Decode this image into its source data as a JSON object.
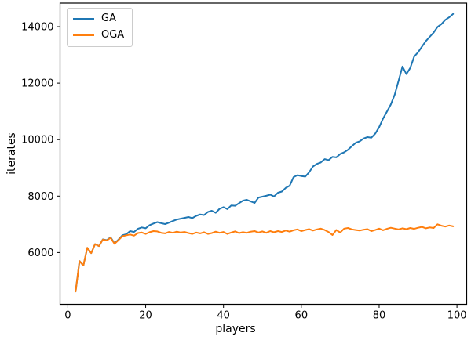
{
  "figure": {
    "xlabel": "players",
    "ylabel": "iterates",
    "background_color": "#ffffff",
    "spine_color": "#000000",
    "legend": {
      "position": "upper left",
      "entries": [
        {
          "label": "GA",
          "color": "#1f77b4"
        },
        {
          "label": "OGA",
          "color": "#ff7f0e"
        }
      ]
    }
  },
  "chart_data": {
    "type": "line",
    "title": "",
    "xlabel": "players",
    "ylabel": "iterates",
    "grid": false,
    "legend_position": "upper left",
    "xlim": [
      -2,
      102.5
    ],
    "ylim": [
      4166,
      14833
    ],
    "x_ticks": [
      0,
      20,
      40,
      60,
      80,
      100
    ],
    "y_ticks": [
      6000,
      8000,
      10000,
      12000,
      14000
    ],
    "x": [
      2,
      3,
      4,
      5,
      6,
      7,
      8,
      9,
      10,
      11,
      12,
      13,
      14,
      15,
      16,
      17,
      18,
      19,
      20,
      21,
      22,
      23,
      24,
      25,
      26,
      27,
      28,
      29,
      30,
      31,
      32,
      33,
      34,
      35,
      36,
      37,
      38,
      39,
      40,
      41,
      42,
      43,
      44,
      45,
      46,
      47,
      48,
      49,
      50,
      51,
      52,
      53,
      54,
      55,
      56,
      57,
      58,
      59,
      60,
      61,
      62,
      63,
      64,
      65,
      66,
      67,
      68,
      69,
      70,
      71,
      72,
      73,
      74,
      75,
      76,
      77,
      78,
      79,
      80,
      81,
      82,
      83,
      84,
      85,
      86,
      87,
      88,
      89,
      90,
      91,
      92,
      93,
      94,
      95,
      96,
      97,
      98,
      99
    ],
    "series": [
      {
        "name": "GA",
        "color": "#1f77b4",
        "values": [
          4620,
          5700,
          5540,
          6170,
          5980,
          6300,
          6230,
          6470,
          6440,
          6540,
          6330,
          6460,
          6610,
          6650,
          6760,
          6730,
          6840,
          6890,
          6860,
          6970,
          7030,
          7080,
          7040,
          7010,
          7060,
          7120,
          7170,
          7200,
          7230,
          7260,
          7220,
          7300,
          7350,
          7330,
          7440,
          7480,
          7410,
          7550,
          7610,
          7540,
          7670,
          7660,
          7750,
          7840,
          7870,
          7810,
          7760,
          7950,
          7980,
          8010,
          8050,
          7990,
          8120,
          8160,
          8290,
          8370,
          8670,
          8740,
          8710,
          8690,
          8840,
          9050,
          9140,
          9190,
          9310,
          9270,
          9390,
          9370,
          9490,
          9550,
          9640,
          9770,
          9890,
          9940,
          10040,
          10090,
          10070,
          10210,
          10440,
          10740,
          10990,
          11240,
          11590,
          12090,
          12590,
          12320,
          12540,
          12940,
          13090,
          13290,
          13490,
          13640,
          13790,
          13990,
          14090,
          14240,
          14330,
          14450
        ]
      },
      {
        "name": "OGA",
        "color": "#ff7f0e",
        "values": [
          4620,
          5700,
          5540,
          6170,
          5980,
          6300,
          6230,
          6460,
          6430,
          6520,
          6310,
          6440,
          6580,
          6610,
          6640,
          6600,
          6690,
          6710,
          6660,
          6720,
          6760,
          6750,
          6700,
          6680,
          6730,
          6700,
          6740,
          6710,
          6730,
          6690,
          6660,
          6710,
          6680,
          6720,
          6660,
          6690,
          6740,
          6700,
          6730,
          6660,
          6710,
          6750,
          6690,
          6720,
          6700,
          6740,
          6760,
          6710,
          6750,
          6700,
          6760,
          6720,
          6760,
          6730,
          6780,
          6740,
          6790,
          6820,
          6760,
          6800,
          6830,
          6780,
          6820,
          6850,
          6800,
          6730,
          6620,
          6800,
          6710,
          6850,
          6870,
          6820,
          6800,
          6780,
          6810,
          6830,
          6760,
          6800,
          6850,
          6790,
          6840,
          6880,
          6850,
          6820,
          6860,
          6830,
          6870,
          6840,
          6880,
          6910,
          6860,
          6890,
          6870,
          7000,
          6950,
          6920,
          6960,
          6930
        ]
      }
    ]
  }
}
